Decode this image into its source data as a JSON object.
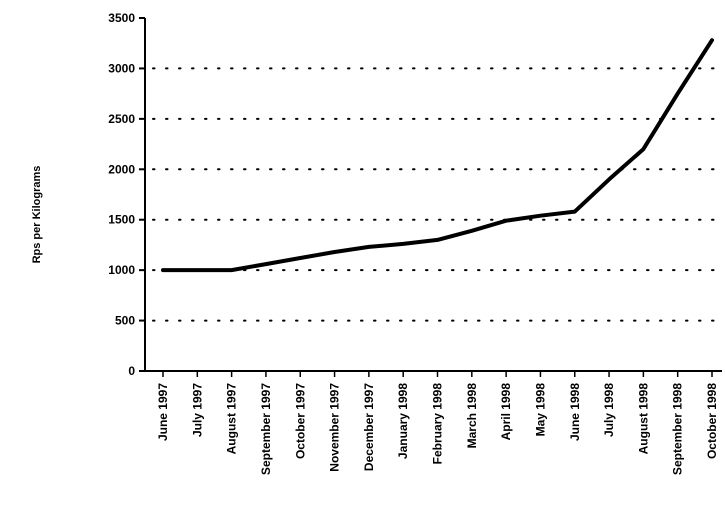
{
  "chart_data": {
    "type": "line",
    "title": "",
    "xlabel": "",
    "ylabel": "Rps per Kilograms",
    "ylim": [
      0,
      3500
    ],
    "yticks": [
      0,
      500,
      1000,
      1500,
      2000,
      2500,
      3000,
      3500
    ],
    "grid": "horizontal dotted",
    "legend": "none",
    "line_color": "#000000",
    "categories": [
      "June 1997",
      "July 1997",
      "August 1997",
      "September 1997",
      "October 1997",
      "November 1997",
      "December 1997",
      "January 1998",
      "February 1998",
      "March 1998",
      "April 1998",
      "May 1998",
      "June 1998",
      "July 1998",
      "August 1998",
      "September 1998",
      "October 1998"
    ],
    "series": [
      {
        "values": [
          1000,
          1000,
          1000,
          1060,
          1120,
          1180,
          1230,
          1260,
          1300,
          1390,
          1490,
          1540,
          1580,
          1900,
          2200,
          2750,
          3280
        ]
      }
    ]
  }
}
